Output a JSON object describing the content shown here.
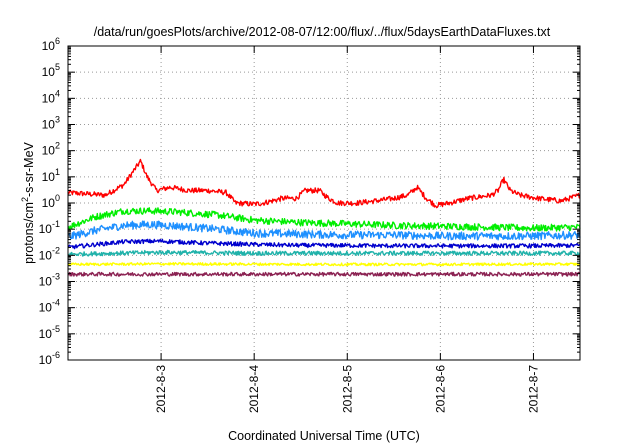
{
  "chart_data": {
    "type": "line",
    "title": "/data/run/goesPlots/archive/2012-08-07/12:00/flux/../flux/5daysEarthDataFluxes.txt",
    "xlabel": "Coordinated Universal Time (UTC)",
    "ylabel": {
      "base": "protons/cm",
      "sup": "2",
      "rest": "-s-sr-MeV"
    },
    "y_scale": "log",
    "ylim": [
      1e-06,
      1000000.0
    ],
    "y_ticks": [
      {
        "base": "10",
        "exp": "-6",
        "value": 1e-06
      },
      {
        "base": "10",
        "exp": "-5",
        "value": 1e-05
      },
      {
        "base": "10",
        "exp": "-4",
        "value": 0.0001
      },
      {
        "base": "10",
        "exp": "-3",
        "value": 0.001
      },
      {
        "base": "10",
        "exp": "-2",
        "value": 0.01
      },
      {
        "base": "10",
        "exp": "-1",
        "value": 0.1
      },
      {
        "base": "10",
        "exp": "0",
        "value": 1
      },
      {
        "base": "10",
        "exp": "1",
        "value": 10
      },
      {
        "base": "10",
        "exp": "2",
        "value": 100
      },
      {
        "base": "10",
        "exp": "3",
        "value": 1000
      },
      {
        "base": "10",
        "exp": "4",
        "value": 10000
      },
      {
        "base": "10",
        "exp": "5",
        "value": 100000
      },
      {
        "base": "10",
        "exp": "6",
        "value": 1000000
      }
    ],
    "xlim_days": [
      0,
      5.5
    ],
    "x_ticks": [
      {
        "label": "2012-8-3",
        "day": 1
      },
      {
        "label": "2012-8-4",
        "day": 2
      },
      {
        "label": "2012-8-5",
        "day": 3
      },
      {
        "label": "2012-8-6",
        "day": 4
      },
      {
        "label": "2012-8-7",
        "day": 5
      }
    ],
    "grid": true,
    "series": [
      {
        "color": "#ff0000",
        "noise": 0.1,
        "points": [
          [
            0,
            2.5
          ],
          [
            0.4,
            2
          ],
          [
            0.6,
            5
          ],
          [
            0.72,
            20
          ],
          [
            0.78,
            40
          ],
          [
            0.85,
            10
          ],
          [
            0.95,
            3
          ],
          [
            1.1,
            4
          ],
          [
            1.3,
            3
          ],
          [
            1.5,
            3
          ],
          [
            1.7,
            2.5
          ],
          [
            1.8,
            1
          ],
          [
            2.0,
            0.9
          ],
          [
            2.1,
            1
          ],
          [
            2.3,
            1.5
          ],
          [
            2.45,
            1.5
          ],
          [
            2.55,
            3
          ],
          [
            2.7,
            3
          ],
          [
            2.8,
            1.5
          ],
          [
            2.9,
            1
          ],
          [
            3.1,
            1
          ],
          [
            3.3,
            1.2
          ],
          [
            3.5,
            1.5
          ],
          [
            3.65,
            2
          ],
          [
            3.75,
            4
          ],
          [
            3.85,
            1.5
          ],
          [
            3.95,
            0.8
          ],
          [
            4.1,
            1
          ],
          [
            4.3,
            1.5
          ],
          [
            4.55,
            2
          ],
          [
            4.62,
            3
          ],
          [
            4.68,
            8
          ],
          [
            4.75,
            3
          ],
          [
            4.85,
            2
          ],
          [
            5.05,
            1.5
          ],
          [
            5.3,
            1.2
          ],
          [
            5.5,
            2
          ]
        ]
      },
      {
        "color": "#00ee00",
        "noise": 0.13,
        "points": [
          [
            0,
            0.12
          ],
          [
            0.3,
            0.3
          ],
          [
            0.6,
            0.5
          ],
          [
            0.9,
            0.5
          ],
          [
            1.2,
            0.45
          ],
          [
            1.6,
            0.35
          ],
          [
            2.0,
            0.22
          ],
          [
            2.5,
            0.18
          ],
          [
            3.0,
            0.16
          ],
          [
            3.5,
            0.14
          ],
          [
            4.0,
            0.13
          ],
          [
            4.5,
            0.12
          ],
          [
            5.0,
            0.11
          ],
          [
            5.5,
            0.12
          ]
        ]
      },
      {
        "color": "#1e90ff",
        "noise": 0.15,
        "points": [
          [
            0,
            0.05
          ],
          [
            0.3,
            0.09
          ],
          [
            0.6,
            0.14
          ],
          [
            0.9,
            0.15
          ],
          [
            1.2,
            0.13
          ],
          [
            1.6,
            0.1
          ],
          [
            2.0,
            0.07
          ],
          [
            2.5,
            0.065
          ],
          [
            3.0,
            0.06
          ],
          [
            3.5,
            0.06
          ],
          [
            4.0,
            0.055
          ],
          [
            4.5,
            0.055
          ],
          [
            5.0,
            0.055
          ],
          [
            5.5,
            0.06
          ]
        ]
      },
      {
        "color": "#0000cd",
        "noise": 0.08,
        "points": [
          [
            0,
            0.02
          ],
          [
            0.3,
            0.026
          ],
          [
            0.6,
            0.033
          ],
          [
            1.0,
            0.035
          ],
          [
            1.4,
            0.03
          ],
          [
            2.0,
            0.026
          ],
          [
            2.5,
            0.024
          ],
          [
            3.0,
            0.024
          ],
          [
            3.5,
            0.023
          ],
          [
            4.0,
            0.023
          ],
          [
            4.5,
            0.023
          ],
          [
            5.0,
            0.023
          ],
          [
            5.5,
            0.024
          ]
        ]
      },
      {
        "color": "#20b2aa",
        "noise": 0.08,
        "points": [
          [
            0,
            0.011
          ],
          [
            1.0,
            0.013
          ],
          [
            2.0,
            0.012
          ],
          [
            3.0,
            0.012
          ],
          [
            4.0,
            0.012
          ],
          [
            5.0,
            0.012
          ],
          [
            5.5,
            0.012
          ]
        ]
      },
      {
        "color": "#ffff00",
        "noise": 0.05,
        "points": [
          [
            0,
            0.0045
          ],
          [
            1.0,
            0.0047
          ],
          [
            2.0,
            0.0046
          ],
          [
            3.0,
            0.0045
          ],
          [
            4.0,
            0.0045
          ],
          [
            5.0,
            0.0046
          ],
          [
            5.5,
            0.0046
          ]
        ]
      },
      {
        "color": "#8b2252",
        "noise": 0.07,
        "points": [
          [
            0,
            0.0019
          ],
          [
            1.0,
            0.0019
          ],
          [
            2.0,
            0.0019
          ],
          [
            3.0,
            0.0019
          ],
          [
            4.0,
            0.0019
          ],
          [
            5.0,
            0.0019
          ],
          [
            5.5,
            0.0019
          ]
        ]
      }
    ]
  }
}
